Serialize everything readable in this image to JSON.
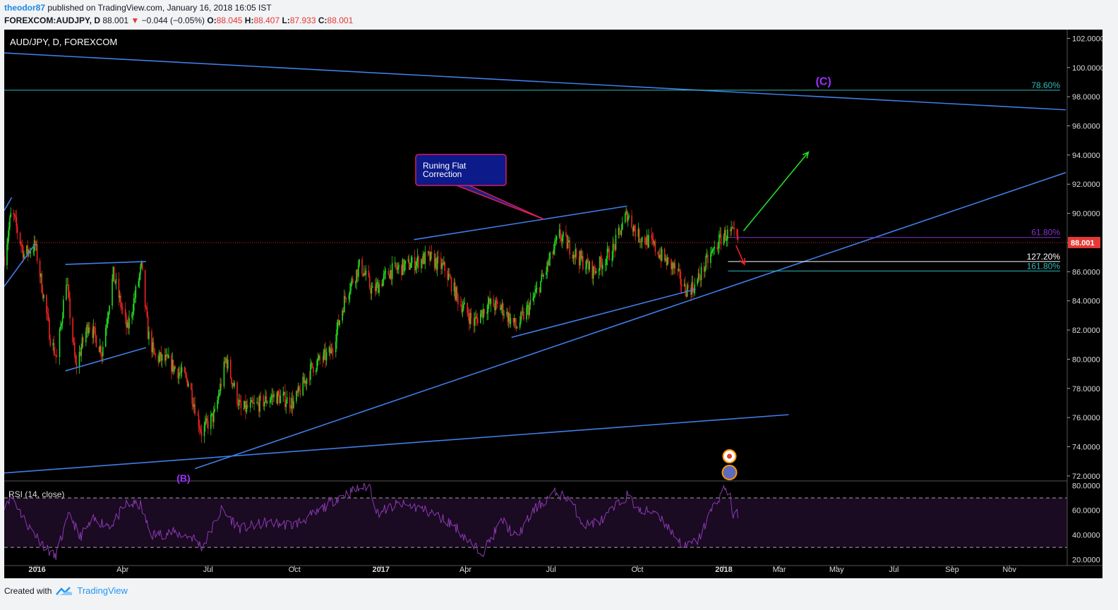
{
  "header": {
    "author": "theodor87",
    "published_text": " published on TradingView.com, January 16, 2018 16:05 IST",
    "symbol_line": "FOREXCOM:AUDJPY, D",
    "last": "88.001",
    "change": "−0.044 (−0.05%)",
    "open_label": "O:",
    "open": "88.045",
    "high_label": "H:",
    "high": "88.407",
    "low_label": "L:",
    "low": "87.933",
    "close_label": "C:",
    "close": "88.001"
  },
  "footer": {
    "created_with": "Created with",
    "brand": "TradingView"
  },
  "colors": {
    "bull": "#22dd22",
    "bear": "#ee2222",
    "trendline": "#3f7ee8",
    "fib_786": "#33bbbb",
    "fib_618": "#8833cc",
    "fib_1272": "#ffffff",
    "fib_1618": "#33bbbb",
    "rsi": "#8a3ab0",
    "price_tag": "#e53935"
  },
  "chart_data": {
    "type": "candlestick",
    "title": "AUD/JPY, D, FOREXCOM",
    "x_axis": {
      "range": [
        "2015-11-27",
        "2018-12-31"
      ],
      "ticks": [
        {
          "date": "2016-01-01",
          "label": "2016",
          "bold": true
        },
        {
          "date": "2016-04-01",
          "label": "Apr"
        },
        {
          "date": "2016-07-01",
          "label": "Jul"
        },
        {
          "date": "2016-10-01",
          "label": "Oct"
        },
        {
          "date": "2017-01-01",
          "label": "2017",
          "bold": true
        },
        {
          "date": "2017-04-01",
          "label": "Apr"
        },
        {
          "date": "2017-07-01",
          "label": "Jul"
        },
        {
          "date": "2017-10-01",
          "label": "Oct"
        },
        {
          "date": "2018-01-01",
          "label": "2018",
          "bold": true
        },
        {
          "date": "2018-03-01",
          "label": "Mar"
        },
        {
          "date": "2018-05-01",
          "label": "May"
        },
        {
          "date": "2018-07-01",
          "label": "Jul"
        },
        {
          "date": "2018-09-01",
          "label": "Sep"
        },
        {
          "date": "2018-11-01",
          "label": "Nov"
        }
      ]
    },
    "y_axis": {
      "range": [
        71.8,
        102.6
      ],
      "ticks": [
        "102.0000",
        "100.0000",
        "98.0000",
        "96.0000",
        "94.0000",
        "92.0000",
        "90.0000",
        "88.0000",
        "86.0000",
        "84.0000",
        "82.0000",
        "80.0000",
        "78.0000",
        "76.0000",
        "74.0000",
        "72.0000"
      ],
      "tick_values": [
        102,
        100,
        98,
        96,
        94,
        92,
        90,
        88,
        86,
        84,
        82,
        80,
        78,
        76,
        74,
        72
      ]
    },
    "last_price": 88.001,
    "last_price_label": "88.001",
    "price_path": [
      [
        "2015-11-27",
        87.0
      ],
      [
        "2015-12-05",
        90.2
      ],
      [
        "2015-12-18",
        87.2
      ],
      [
        "2015-12-30",
        87.8
      ],
      [
        "2016-01-15",
        81.5
      ],
      [
        "2016-01-22",
        80.0
      ],
      [
        "2016-02-01",
        85.5
      ],
      [
        "2016-02-11",
        79.5
      ],
      [
        "2016-02-25",
        82.5
      ],
      [
        "2016-03-10",
        80.5
      ],
      [
        "2016-03-22",
        85.8
      ],
      [
        "2016-04-06",
        82.0
      ],
      [
        "2016-04-21",
        86.3
      ],
      [
        "2016-04-28",
        81.8
      ],
      [
        "2016-05-05",
        80.2
      ],
      [
        "2016-05-20",
        79.8
      ],
      [
        "2016-06-10",
        78.5
      ],
      [
        "2016-06-24",
        75.0
      ],
      [
        "2016-07-08",
        76.2
      ],
      [
        "2016-07-20",
        80.0
      ],
      [
        "2016-08-05",
        76.5
      ],
      [
        "2016-08-20",
        76.8
      ],
      [
        "2016-09-10",
        77.5
      ],
      [
        "2016-09-30",
        77.0
      ],
      [
        "2016-10-20",
        79.5
      ],
      [
        "2016-11-09",
        80.5
      ],
      [
        "2016-11-25",
        84.5
      ],
      [
        "2016-12-10",
        86.5
      ],
      [
        "2016-12-23",
        84.6
      ],
      [
        "2017-01-10",
        86.0
      ],
      [
        "2017-02-01",
        86.5
      ],
      [
        "2017-02-20",
        87.0
      ],
      [
        "2017-03-10",
        86.2
      ],
      [
        "2017-03-25",
        84.0
      ],
      [
        "2017-04-10",
        82.5
      ],
      [
        "2017-04-25",
        83.8
      ],
      [
        "2017-05-10",
        83.5
      ],
      [
        "2017-05-25",
        82.2
      ],
      [
        "2017-06-10",
        83.8
      ],
      [
        "2017-06-25",
        86.0
      ],
      [
        "2017-07-10",
        88.5
      ],
      [
        "2017-07-30",
        87.0
      ],
      [
        "2017-08-15",
        86.0
      ],
      [
        "2017-09-05",
        87.5
      ],
      [
        "2017-09-20",
        90.0
      ],
      [
        "2017-10-01",
        88.5
      ],
      [
        "2017-10-15",
        88.0
      ],
      [
        "2017-10-30",
        86.8
      ],
      [
        "2017-11-10",
        86.2
      ],
      [
        "2017-11-20",
        84.8
      ],
      [
        "2017-12-01",
        85.0
      ],
      [
        "2017-12-15",
        86.8
      ],
      [
        "2017-12-31",
        88.5
      ],
      [
        "2018-01-10",
        88.6
      ],
      [
        "2018-01-16",
        88.0
      ]
    ],
    "trendlines": [
      {
        "from": [
          "2015-11-27",
          101.0
        ],
        "to": [
          "2018-12-31",
          97.1
        ]
      },
      {
        "from": [
          "2015-11-27",
          85.0
        ],
        "to": [
          "2015-12-30",
          87.9
        ]
      },
      {
        "from": [
          "2015-11-27",
          90.2
        ],
        "to": [
          "2015-12-05",
          91.1
        ]
      },
      {
        "from": [
          "2016-01-31",
          86.5
        ],
        "to": [
          "2016-04-26",
          86.7
        ]
      },
      {
        "from": [
          "2016-01-31",
          79.2
        ],
        "to": [
          "2016-04-26",
          80.8
        ]
      },
      {
        "from": [
          "2017-02-05",
          88.2
        ],
        "to": [
          "2017-09-20",
          90.5
        ]
      },
      {
        "from": [
          "2017-05-20",
          81.5
        ],
        "to": [
          "2017-12-02",
          84.8
        ]
      },
      {
        "from": [
          "2016-06-17",
          72.5
        ],
        "to": [
          "2018-12-31",
          92.8
        ]
      },
      {
        "from": [
          "2015-11-27",
          72.2
        ],
        "to": [
          "2018-03-11",
          76.2
        ]
      }
    ],
    "fib_levels": [
      {
        "label": "78.60%",
        "value": 98.45,
        "from": "2015-11-27",
        "color": "#33bbbb"
      },
      {
        "label": "61.80%",
        "value": 88.35,
        "from": "2018-01-16",
        "color": "#8833cc"
      },
      {
        "label": "127.20%",
        "value": 86.7,
        "from": "2018-01-16",
        "color": "#ffffff"
      },
      {
        "label": "161.80%",
        "value": 86.05,
        "from": "2018-01-16",
        "color": "#33bbbb"
      }
    ],
    "annotations": {
      "wave_c": "(C)",
      "wave_b": "(B)",
      "callout": [
        "Runing Flat",
        "Correction"
      ]
    },
    "arrows": [
      {
        "from": [
          "2018-01-22",
          88.8
        ],
        "to": [
          "2018-04-01",
          94.2
        ],
        "color": "#22dd22"
      },
      {
        "from": [
          "2018-01-14",
          87.8
        ],
        "to": [
          "2018-01-23",
          86.5
        ],
        "color": "#ee2222"
      }
    ],
    "rsi": {
      "label": "RSI (14, close)",
      "range": [
        17,
        82
      ],
      "ticks": [
        "80.0000",
        "60.0000",
        "40.0000",
        "20.0000"
      ],
      "tick_values": [
        80,
        60,
        40,
        20
      ],
      "bands": [
        70,
        30
      ],
      "path": [
        [
          "2015-11-27",
          65
        ],
        [
          "2015-12-05",
          72
        ],
        [
          "2015-12-20",
          50
        ],
        [
          "2016-01-10",
          30
        ],
        [
          "2016-01-20",
          22
        ],
        [
          "2016-02-05",
          58
        ],
        [
          "2016-02-15",
          38
        ],
        [
          "2016-03-01",
          52
        ],
        [
          "2016-03-20",
          48
        ],
        [
          "2016-04-05",
          65
        ],
        [
          "2016-04-20",
          64
        ],
        [
          "2016-05-01",
          40
        ],
        [
          "2016-05-25",
          42
        ],
        [
          "2016-06-15",
          38
        ],
        [
          "2016-06-25",
          30
        ],
        [
          "2016-07-15",
          60
        ],
        [
          "2016-08-05",
          45
        ],
        [
          "2016-09-01",
          50
        ],
        [
          "2016-09-30",
          48
        ],
        [
          "2016-10-25",
          58
        ],
        [
          "2016-11-15",
          70
        ],
        [
          "2016-12-10",
          78
        ],
        [
          "2016-12-20",
          80
        ],
        [
          "2016-12-28",
          58
        ],
        [
          "2017-01-20",
          65
        ],
        [
          "2017-02-10",
          62
        ],
        [
          "2017-03-01",
          56
        ],
        [
          "2017-03-20",
          48
        ],
        [
          "2017-04-10",
          30
        ],
        [
          "2017-04-20",
          27
        ],
        [
          "2017-05-10",
          52
        ],
        [
          "2017-05-25",
          38
        ],
        [
          "2017-06-15",
          62
        ],
        [
          "2017-07-05",
          74
        ],
        [
          "2017-07-20",
          70
        ],
        [
          "2017-08-05",
          48
        ],
        [
          "2017-08-25",
          52
        ],
        [
          "2017-09-20",
          72
        ],
        [
          "2017-10-05",
          58
        ],
        [
          "2017-10-20",
          60
        ],
        [
          "2017-11-05",
          44
        ],
        [
          "2017-11-20",
          30
        ],
        [
          "2017-12-05",
          36
        ],
        [
          "2017-12-20",
          62
        ],
        [
          "2018-01-02",
          78
        ],
        [
          "2018-01-08",
          72
        ],
        [
          "2018-01-11",
          52
        ],
        [
          "2018-01-16",
          58
        ]
      ]
    }
  }
}
